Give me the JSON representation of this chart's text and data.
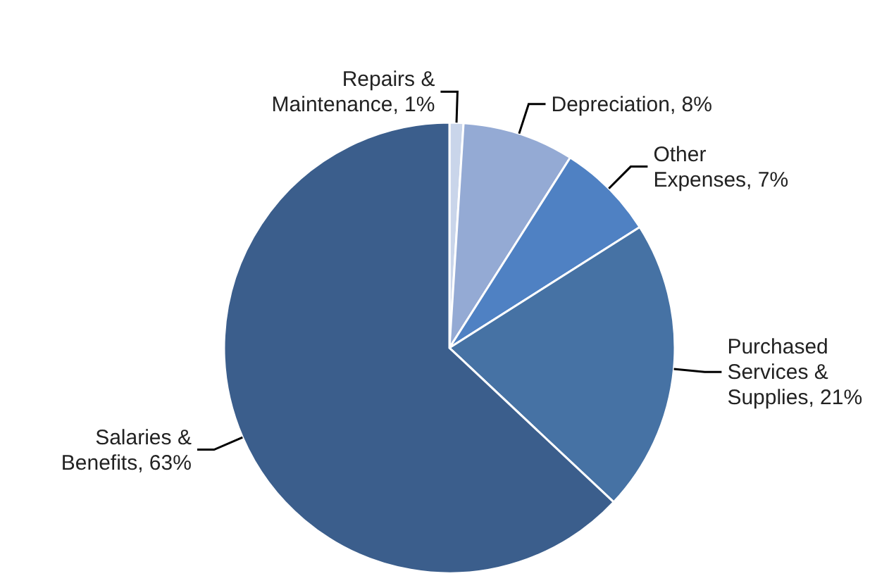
{
  "chart_data": {
    "type": "pie",
    "categories": [
      "Repairs & Maintenance",
      "Depreciation",
      "Other Expenses",
      "Purchased Services & Supplies",
      "Salaries & Benefits"
    ],
    "values": [
      1,
      8,
      7,
      21,
      63
    ],
    "value_labels": [
      "1%",
      "8%",
      "7%",
      "21%",
      "63%"
    ],
    "colors": [
      "#c9d5ea",
      "#94aad4",
      "#4f81c3",
      "#4672a4",
      "#3b5e8c"
    ],
    "legend": false
  }
}
